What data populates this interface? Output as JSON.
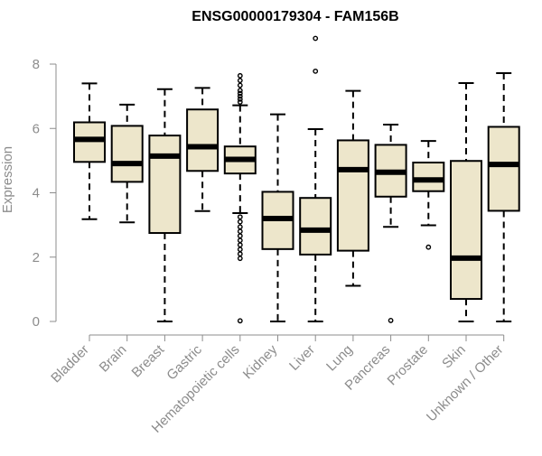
{
  "chart_data": {
    "type": "box",
    "title": "ENSG00000179304 - FAM156B",
    "xlabel": "",
    "ylabel": "Expression",
    "ylim": [
      0,
      8
    ],
    "yticks": [
      0,
      2,
      4,
      6,
      8
    ],
    "categories": [
      "Bladder",
      "Brain",
      "Breast",
      "Gastric",
      "Hematopoietic cells",
      "Kidney",
      "Liver",
      "Lung",
      "Pancreas",
      "Prostate",
      "Skin",
      "Unknown / Other"
    ],
    "boxes": [
      {
        "whisker_low": 3.18,
        "q1": 4.96,
        "median": 5.66,
        "q3": 6.19,
        "whisker_high": 7.4,
        "outliers": []
      },
      {
        "whisker_low": 3.08,
        "q1": 4.34,
        "median": 4.91,
        "q3": 6.08,
        "whisker_high": 6.74,
        "outliers": []
      },
      {
        "whisker_low": 0.0,
        "q1": 2.75,
        "median": 5.14,
        "q3": 5.78,
        "whisker_high": 7.22,
        "outliers": []
      },
      {
        "whisker_low": 3.43,
        "q1": 4.68,
        "median": 5.43,
        "q3": 6.59,
        "whisker_high": 7.26,
        "outliers": []
      },
      {
        "whisker_low": 3.37,
        "q1": 4.6,
        "median": 5.04,
        "q3": 5.44,
        "whisker_high": 6.72,
        "outliers": [
          7.64,
          7.49,
          7.34,
          7.18,
          7.09,
          7.0,
          6.91,
          6.82,
          3.25,
          3.1,
          2.94,
          2.8,
          2.66,
          2.52,
          2.38,
          2.24,
          2.1,
          1.96,
          0.02
        ]
      },
      {
        "whisker_low": 0.0,
        "q1": 2.25,
        "median": 3.2,
        "q3": 4.03,
        "whisker_high": 6.44,
        "outliers": []
      },
      {
        "whisker_low": 0.0,
        "q1": 2.08,
        "median": 2.84,
        "q3": 3.84,
        "whisker_high": 5.98,
        "outliers": [
          8.8,
          7.78
        ]
      },
      {
        "whisker_low": 1.11,
        "q1": 2.2,
        "median": 4.72,
        "q3": 5.63,
        "whisker_high": 7.17,
        "outliers": []
      },
      {
        "whisker_low": 2.94,
        "q1": 3.88,
        "median": 4.64,
        "q3": 5.49,
        "whisker_high": 6.12,
        "outliers": [
          0.03
        ]
      },
      {
        "whisker_low": 2.99,
        "q1": 4.05,
        "median": 4.4,
        "q3": 4.94,
        "whisker_high": 5.61,
        "outliers": [
          2.31
        ]
      },
      {
        "whisker_low": 0.0,
        "q1": 0.7,
        "median": 1.97,
        "q3": 4.99,
        "whisker_high": 7.41,
        "outliers": []
      },
      {
        "whisker_low": 0.0,
        "q1": 3.44,
        "median": 4.88,
        "q3": 6.05,
        "whisker_high": 7.72,
        "outliers": []
      }
    ],
    "grid": false,
    "legend": "none",
    "colors": {
      "box_fill": "#ede6cb",
      "box_stroke": "#000000",
      "median": "#000000",
      "axis": "#8c8c8c",
      "text": "#8c8c8c",
      "title": "#000000"
    }
  }
}
